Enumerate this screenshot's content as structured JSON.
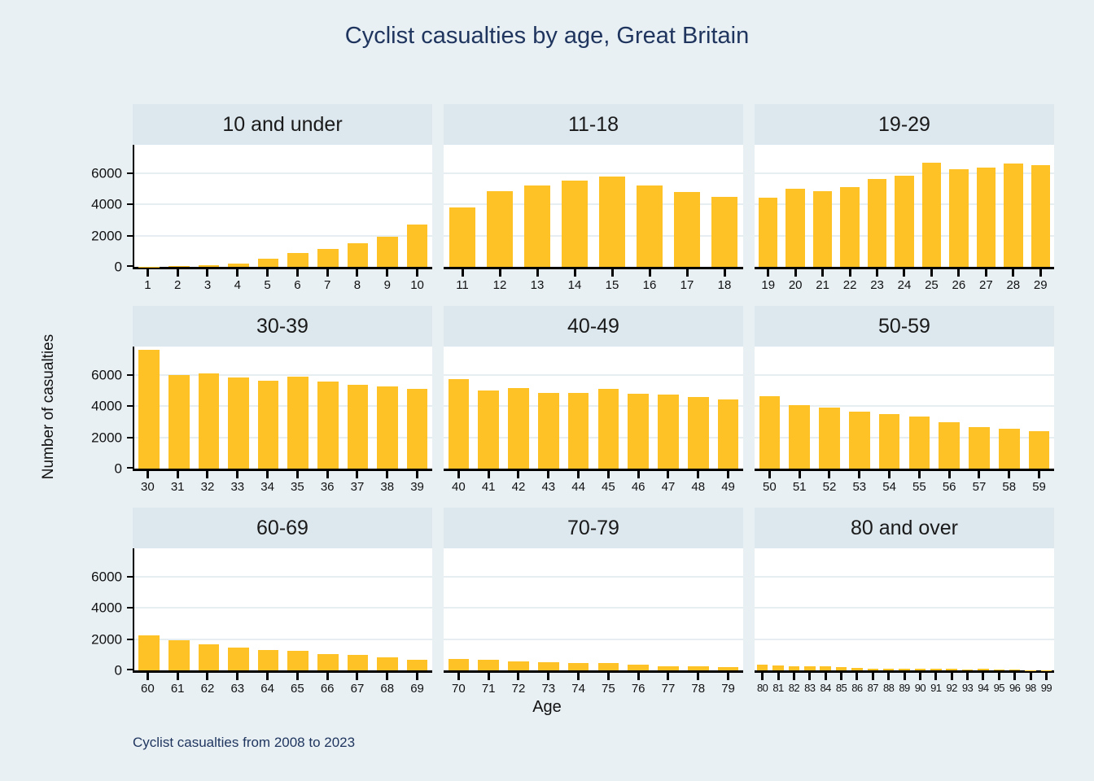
{
  "title": "Cyclist casualties by age, Great Britain",
  "note": "Cyclist casualties from 2008 to 2023",
  "colors": {
    "bar": "#FFC226",
    "background": "#E8F0F4",
    "panel_header": "#DCE7EE",
    "plot_background": "#FFFFFF",
    "gridline": "#E7EEF1",
    "axis": "#000000",
    "title_text": "#1F355E",
    "note_text": "#1F355E"
  },
  "chart_data": {
    "type": "bar",
    "title": "Cyclist casualties by age, Great Britain",
    "xlabel": "Age",
    "ylabel": "Number of casualties",
    "note": "Cyclist casualties from 2008 to 2023",
    "yticks": [
      0,
      2000,
      4000,
      6000
    ],
    "ylim": [
      0,
      7800
    ],
    "grid": true,
    "legend": "none",
    "layout": "3x3 small multiples, y tick labels on left column only",
    "panels": [
      {
        "label": "10 and under",
        "categories": [
          "1",
          "2",
          "3",
          "4",
          "5",
          "6",
          "7",
          "8",
          "9",
          "10"
        ],
        "values": [
          15,
          60,
          120,
          230,
          500,
          880,
          1160,
          1500,
          1950,
          2700
        ]
      },
      {
        "label": "11-18",
        "categories": [
          "11",
          "12",
          "13",
          "14",
          "15",
          "16",
          "17",
          "18"
        ],
        "values": [
          3810,
          4820,
          5200,
          5530,
          5780,
          5200,
          4760,
          4480
        ]
      },
      {
        "label": "19-29",
        "categories": [
          "19",
          "20",
          "21",
          "22",
          "23",
          "24",
          "25",
          "26",
          "27",
          "28",
          "29"
        ],
        "values": [
          4440,
          4970,
          4820,
          5100,
          5620,
          5850,
          6650,
          6250,
          6360,
          6610,
          6480
        ]
      },
      {
        "label": "30-39",
        "categories": [
          "30",
          "31",
          "32",
          "33",
          "34",
          "35",
          "36",
          "37",
          "38",
          "39"
        ],
        "values": [
          7570,
          6000,
          6060,
          5840,
          5600,
          5900,
          5560,
          5370,
          5270,
          5110
        ]
      },
      {
        "label": "40-49",
        "categories": [
          "40",
          "41",
          "42",
          "43",
          "44",
          "45",
          "46",
          "47",
          "48",
          "49"
        ],
        "values": [
          5720,
          5010,
          5130,
          4820,
          4850,
          5080,
          4760,
          4710,
          4580,
          4430
        ]
      },
      {
        "label": "50-59",
        "categories": [
          "50",
          "51",
          "52",
          "53",
          "54",
          "55",
          "56",
          "57",
          "58",
          "59"
        ],
        "values": [
          4650,
          4040,
          3920,
          3620,
          3460,
          3330,
          2950,
          2640,
          2550,
          2390
        ]
      },
      {
        "label": "60-69",
        "categories": [
          "60",
          "61",
          "62",
          "63",
          "64",
          "65",
          "66",
          "67",
          "68",
          "69"
        ],
        "values": [
          2260,
          1900,
          1640,
          1450,
          1320,
          1260,
          1050,
          990,
          810,
          680
        ]
      },
      {
        "label": "70-79",
        "categories": [
          "70",
          "71",
          "72",
          "73",
          "74",
          "75",
          "76",
          "77",
          "78",
          "79"
        ],
        "values": [
          730,
          680,
          580,
          520,
          450,
          460,
          350,
          280,
          270,
          220
        ]
      },
      {
        "label": "80 and over",
        "categories": [
          "80",
          "81",
          "82",
          "83",
          "84",
          "85",
          "86",
          "87",
          "88",
          "89",
          "90",
          "91",
          "92",
          "93",
          "94",
          "95",
          "96",
          "98",
          "99"
        ],
        "values": [
          360,
          310,
          270,
          250,
          250,
          200,
          180,
          120,
          110,
          100,
          90,
          80,
          80,
          60,
          100,
          40,
          30,
          20,
          15
        ]
      }
    ]
  }
}
